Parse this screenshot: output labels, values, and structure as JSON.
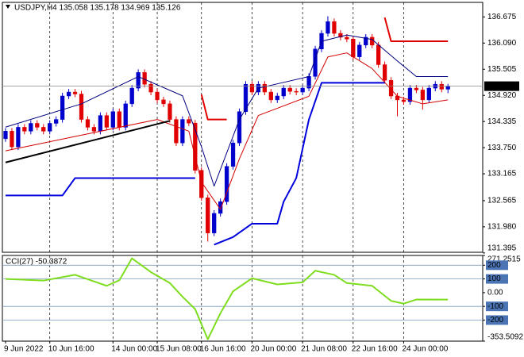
{
  "chart_data": [
    {
      "type": "candlestick",
      "title": "USDJPY,H4  135.058 135.178 134.969 135.126",
      "xlim": [
        -0.5,
        75.5
      ],
      "xticks": [
        {
          "value": 0,
          "label": "9 Jun 2022"
        },
        {
          "value": 7,
          "label": "10 Jun 16:00"
        },
        {
          "value": 17,
          "label": "14 Jun 00:00"
        },
        {
          "value": 24,
          "label": "15 Jun 08:00"
        },
        {
          "value": 31,
          "label": "16 Jun 16:00"
        },
        {
          "value": 39,
          "label": "20 Jun 00:00"
        },
        {
          "value": 47,
          "label": "21 Jun 08:00"
        },
        {
          "value": 55,
          "label": "22 Jun 16:00"
        },
        {
          "value": 63,
          "label": "24 Jun 00:00"
        }
      ],
      "ylim": [
        131.41,
        137.0
      ],
      "yticks": [
        136.675,
        {
          "value": 136.09,
          "label": "136.090"
        },
        135.505,
        {
          "value": 134.92,
          "label": "134.920"
        },
        134.335,
        {
          "value": 133.75,
          "label": "133.750"
        },
        133.165,
        132.565,
        {
          "value": 131.98,
          "label": "131.980"
        },
        131.395
      ],
      "grid": "x",
      "up_color": "#0000cc",
      "down_color": "#e00000",
      "open": [
        133.95,
        134.119,
        133.768,
        134.206,
        134.119,
        134.294,
        134.206,
        134.119,
        134.294,
        134.381,
        134.906,
        134.994,
        134.95,
        134.381,
        134.206,
        134.119,
        134.469,
        134.206,
        134.556,
        134.206,
        134.731,
        135.082,
        135.432,
        135.169,
        134.994,
        134.819,
        134.731,
        134.381,
        133.856,
        134.381,
        134.3,
        133.243,
        132.63,
        131.842,
        132.28,
        132.543,
        133.331,
        133.856,
        134.556,
        135.169,
        134.994,
        135.169,
        134.994,
        134.819,
        134.906,
        135.082,
        135.01,
        134.994,
        135.082,
        135.344,
        135.957,
        136.307,
        136.57,
        136.307,
        136.22,
        136.18,
        135.782,
        136.045,
        136.22,
        136.045,
        135.607,
        135.257,
        134.906,
        134.819,
        134.78,
        135.082,
        135.04,
        134.819,
        135.082,
        135.169,
        135.058
      ],
      "high": [
        134.189,
        134.189,
        134.276,
        134.276,
        134.364,
        134.364,
        134.276,
        134.364,
        134.451,
        134.976,
        135.064,
        135.064,
        135.02,
        134.451,
        134.276,
        134.539,
        134.539,
        134.626,
        134.626,
        134.801,
        135.152,
        135.502,
        135.502,
        135.239,
        135.064,
        134.889,
        134.801,
        134.451,
        134.451,
        134.451,
        134.37,
        133.313,
        132.7,
        132.35,
        132.613,
        133.401,
        133.926,
        134.626,
        135.239,
        135.239,
        135.239,
        135.239,
        135.064,
        134.976,
        135.152,
        135.152,
        135.08,
        135.152,
        135.414,
        136.027,
        136.377,
        136.69,
        136.64,
        136.377,
        136.29,
        136.25,
        136.115,
        136.29,
        136.29,
        136.115,
        135.677,
        135.327,
        134.976,
        134.889,
        135.152,
        135.152,
        135.11,
        135.152,
        135.239,
        135.239,
        135.178
      ],
      "low": [
        133.88,
        133.698,
        133.698,
        134.049,
        134.049,
        134.136,
        134.049,
        134.049,
        134.224,
        134.311,
        134.836,
        134.88,
        134.311,
        134.136,
        134.049,
        134.049,
        134.136,
        134.136,
        134.136,
        134.136,
        134.661,
        135.012,
        135.099,
        134.924,
        134.749,
        134.661,
        134.311,
        133.786,
        133.786,
        134.23,
        133.173,
        132.56,
        131.65,
        131.772,
        132.21,
        132.473,
        133.261,
        133.786,
        134.486,
        134.924,
        134.924,
        134.924,
        134.749,
        134.749,
        134.836,
        134.94,
        134.924,
        134.924,
        135.012,
        135.274,
        135.887,
        136.237,
        136.237,
        136.15,
        136.11,
        135.712,
        135.712,
        135.975,
        135.975,
        135.537,
        135.187,
        134.836,
        134.45,
        134.71,
        134.71,
        134.97,
        134.6,
        134.749,
        135.012,
        134.988,
        134.969
      ],
      "close": [
        134.119,
        133.768,
        134.206,
        134.119,
        134.294,
        134.206,
        134.119,
        134.294,
        134.381,
        134.906,
        134.994,
        134.95,
        134.381,
        134.206,
        134.119,
        134.469,
        134.206,
        134.556,
        134.206,
        134.731,
        135.082,
        135.432,
        135.169,
        134.994,
        134.819,
        134.731,
        134.381,
        133.856,
        134.381,
        134.3,
        133.243,
        132.63,
        131.842,
        132.28,
        132.543,
        133.331,
        133.856,
        134.556,
        135.169,
        134.994,
        135.169,
        134.994,
        134.819,
        134.906,
        135.082,
        135.01,
        134.994,
        135.082,
        135.344,
        135.957,
        136.307,
        136.57,
        136.307,
        136.22,
        136.18,
        135.782,
        136.045,
        136.22,
        136.045,
        135.607,
        135.257,
        134.906,
        134.819,
        134.78,
        135.082,
        135.04,
        134.819,
        135.082,
        135.169,
        135.058,
        135.126
      ],
      "lines": [
        {
          "color": "#d40000",
          "width": 1,
          "x": [
            0,
            12,
            24,
            29,
            31,
            34,
            37,
            40,
            48,
            51,
            54,
            58,
            62,
            66,
            70
          ],
          "values": [
            133.68,
            134.03,
            134.38,
            134.12,
            132.98,
            132.37,
            133.5,
            134.47,
            134.9,
            135.78,
            135.87,
            135.52,
            134.9,
            134.73,
            134.82
          ]
        },
        {
          "color": "#000080",
          "width": 1,
          "x": [
            0,
            12,
            21,
            28,
            31,
            33,
            37,
            40,
            48,
            50,
            54,
            58,
            62,
            65,
            70
          ],
          "values": [
            134.21,
            134.73,
            135.34,
            134.91,
            133.77,
            132.89,
            134.38,
            135.08,
            135.34,
            136.13,
            136.27,
            136.17,
            135.69,
            135.34,
            135.34
          ]
        },
        {
          "color": "#0000dd",
          "width": 2,
          "x": [
            0,
            9,
            11,
            30,
            31,
            33,
            36,
            39,
            43,
            44,
            46,
            48,
            50,
            60
          ],
          "values": [
            132.68,
            132.68,
            133.07,
            133.07,
            null,
            131.58,
            131.75,
            132.05,
            132.05,
            132.54,
            133.07,
            134.38,
            135.2,
            135.2
          ]
        },
        {
          "color": "#e00000",
          "width": 2,
          "x": [
            31,
            32,
            35,
            36,
            60,
            61,
            70
          ],
          "values": [
            134.94,
            134.38,
            134.38,
            null,
            136.66,
            136.13,
            136.13
          ]
        },
        {
          "color": "#000000",
          "width": 2,
          "x": [
            0,
            26
          ],
          "values": [
            133.42,
            134.35
          ]
        }
      ]
    },
    {
      "type": "line",
      "title": "CCI(27) -50.3872",
      "xlim": [
        -0.5,
        75.5
      ],
      "ylim": [
        -353.5092,
        271.2515
      ],
      "yticks": [
        271.2515,
        200,
        100,
        {
          "value": 0,
          "label": "0.00"
        },
        -100,
        -200,
        -353.5092
      ],
      "color": "#7fdd1f",
      "x": [
        0,
        6,
        11,
        16,
        18,
        20,
        23,
        26,
        28,
        30,
        32,
        34,
        36,
        39,
        43,
        47,
        49,
        52,
        54,
        58,
        61,
        63,
        65,
        70
      ],
      "values": [
        100,
        88,
        130,
        50,
        90,
        250,
        150,
        70,
        -30,
        -120,
        -340,
        -150,
        10,
        105,
        60,
        75,
        160,
        130,
        70,
        50,
        -60,
        -80,
        -50,
        -50.3872
      ]
    }
  ]
}
